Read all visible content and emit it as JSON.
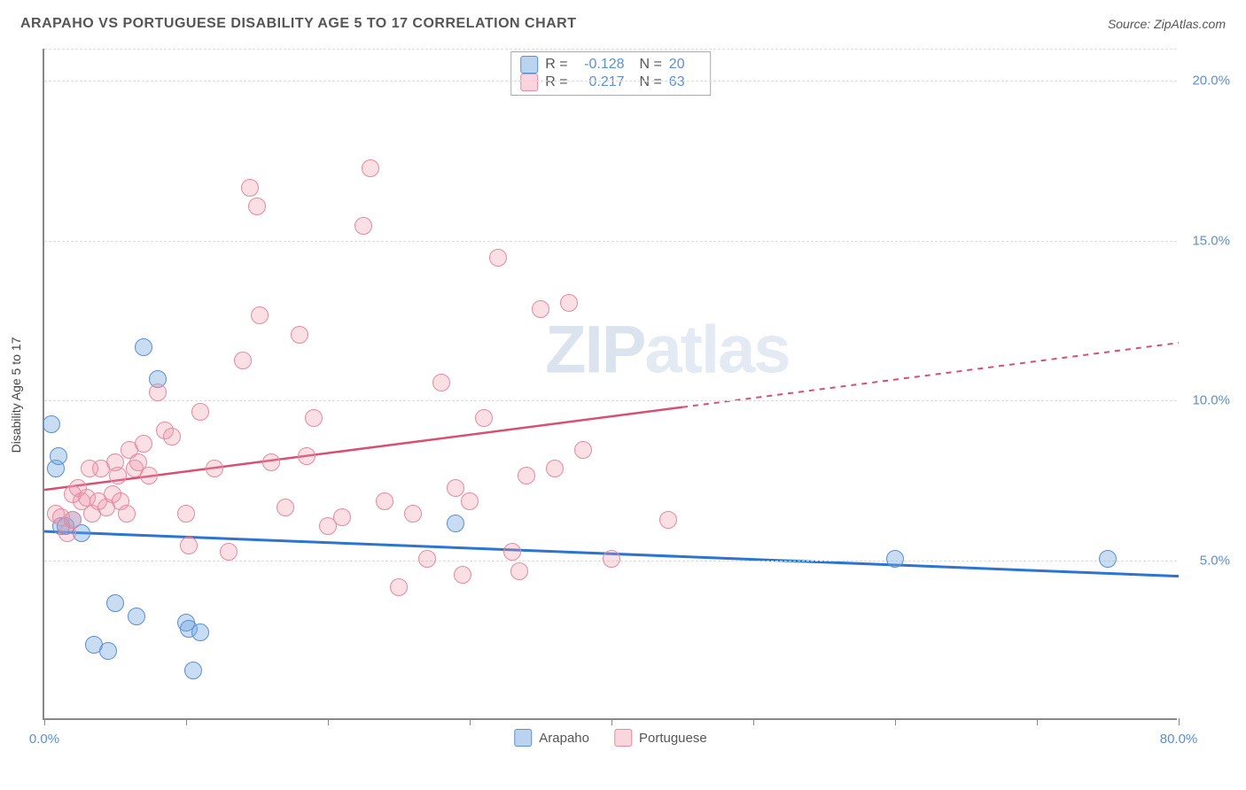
{
  "title": "ARAPAHO VS PORTUGUESE DISABILITY AGE 5 TO 17 CORRELATION CHART",
  "source": "Source: ZipAtlas.com",
  "chart": {
    "type": "scatter",
    "background_color": "#ffffff",
    "grid_color": "#dddddd",
    "axis_color": "#888888",
    "tick_label_color": "#5b8fd6",
    "y_axis_label": "Disability Age 5 to 17",
    "y_axis_label_color": "#444444",
    "y_axis_label_fontsize": 14,
    "xlim": [
      0,
      80
    ],
    "ylim": [
      0,
      21
    ],
    "xticks": [
      0,
      10,
      20,
      30,
      40,
      50,
      60,
      70,
      80
    ],
    "xtick_labels": {
      "0": "0.0%",
      "80": "80.0%"
    },
    "yticks": [
      5,
      10,
      15,
      20
    ],
    "ytick_labels": [
      "5.0%",
      "10.0%",
      "15.0%",
      "20.0%"
    ],
    "watermark": {
      "text_bold": "ZIP",
      "text_light": "atlas",
      "color": "#cbd8e8",
      "fontsize": 76
    },
    "marker_radius": 10,
    "series": [
      {
        "name": "Arapaho",
        "color_fill": "rgba(117,167,222,0.4)",
        "color_stroke": "#5b8fd6",
        "R": "-0.128",
        "N": "20",
        "trend": {
          "x1": 0,
          "y1": 5.9,
          "x2": 80,
          "y2": 4.5,
          "solid_until_x": 80,
          "stroke": "#2d74d0",
          "width": 3
        },
        "points": [
          [
            0.5,
            9.2
          ],
          [
            0.8,
            7.8
          ],
          [
            1.0,
            8.2
          ],
          [
            1.2,
            6.0
          ],
          [
            1.5,
            6.0
          ],
          [
            2.0,
            6.2
          ],
          [
            2.6,
            5.8
          ],
          [
            3.5,
            2.3
          ],
          [
            4.5,
            2.1
          ],
          [
            5.0,
            3.6
          ],
          [
            6.5,
            3.2
          ],
          [
            7.0,
            11.6
          ],
          [
            8.0,
            10.6
          ],
          [
            10.0,
            3.0
          ],
          [
            10.2,
            2.8
          ],
          [
            10.5,
            1.5
          ],
          [
            11.0,
            2.7
          ],
          [
            29.0,
            6.1
          ],
          [
            60.0,
            5.0
          ],
          [
            75.0,
            5.0
          ]
        ]
      },
      {
        "name": "Portuguese",
        "color_fill": "rgba(240,150,170,0.3)",
        "color_stroke": "#e78aa0",
        "R": "0.217",
        "N": "63",
        "trend": {
          "x1": 0,
          "y1": 7.2,
          "x2": 80,
          "y2": 11.8,
          "solid_until_x": 45,
          "stroke": "#d94f72",
          "width": 2.5,
          "dash": "6,6"
        },
        "points": [
          [
            0.8,
            6.4
          ],
          [
            1.2,
            6.3
          ],
          [
            1.6,
            5.8
          ],
          [
            2.0,
            7.0
          ],
          [
            2.0,
            6.2
          ],
          [
            2.4,
            7.2
          ],
          [
            2.6,
            6.8
          ],
          [
            3.0,
            6.9
          ],
          [
            3.2,
            7.8
          ],
          [
            3.4,
            6.4
          ],
          [
            3.8,
            6.8
          ],
          [
            4.0,
            7.8
          ],
          [
            4.4,
            6.6
          ],
          [
            4.8,
            7.0
          ],
          [
            5.0,
            8.0
          ],
          [
            5.2,
            7.6
          ],
          [
            5.4,
            6.8
          ],
          [
            5.8,
            6.4
          ],
          [
            6.0,
            8.4
          ],
          [
            6.4,
            7.8
          ],
          [
            6.6,
            8.0
          ],
          [
            7.0,
            8.6
          ],
          [
            7.4,
            7.6
          ],
          [
            8.0,
            10.2
          ],
          [
            8.5,
            9.0
          ],
          [
            9.0,
            8.8
          ],
          [
            10.0,
            6.4
          ],
          [
            10.2,
            5.4
          ],
          [
            11.0,
            9.6
          ],
          [
            12.0,
            7.8
          ],
          [
            13.0,
            5.2
          ],
          [
            14.0,
            11.2
          ],
          [
            14.5,
            16.6
          ],
          [
            15.0,
            16.0
          ],
          [
            15.2,
            12.6
          ],
          [
            16.0,
            8.0
          ],
          [
            17.0,
            6.6
          ],
          [
            18.0,
            12.0
          ],
          [
            18.5,
            8.2
          ],
          [
            19.0,
            9.4
          ],
          [
            20.0,
            6.0
          ],
          [
            21.0,
            6.3
          ],
          [
            22.5,
            15.4
          ],
          [
            23.0,
            17.2
          ],
          [
            24.0,
            6.8
          ],
          [
            25.0,
            4.1
          ],
          [
            26.0,
            6.4
          ],
          [
            27.0,
            5.0
          ],
          [
            28.0,
            10.5
          ],
          [
            29.0,
            7.2
          ],
          [
            29.5,
            4.5
          ],
          [
            30.0,
            6.8
          ],
          [
            31.0,
            9.4
          ],
          [
            32.0,
            14.4
          ],
          [
            33.0,
            5.2
          ],
          [
            33.5,
            4.6
          ],
          [
            34.0,
            7.6
          ],
          [
            35.0,
            12.8
          ],
          [
            36.0,
            7.8
          ],
          [
            37.0,
            13.0
          ],
          [
            38.0,
            8.4
          ],
          [
            40.0,
            5.0
          ],
          [
            44.0,
            6.2
          ]
        ]
      }
    ],
    "bottom_legend": [
      {
        "label": "Arapaho",
        "swatch": "blue"
      },
      {
        "label": "Portuguese",
        "swatch": "pink"
      }
    ]
  }
}
